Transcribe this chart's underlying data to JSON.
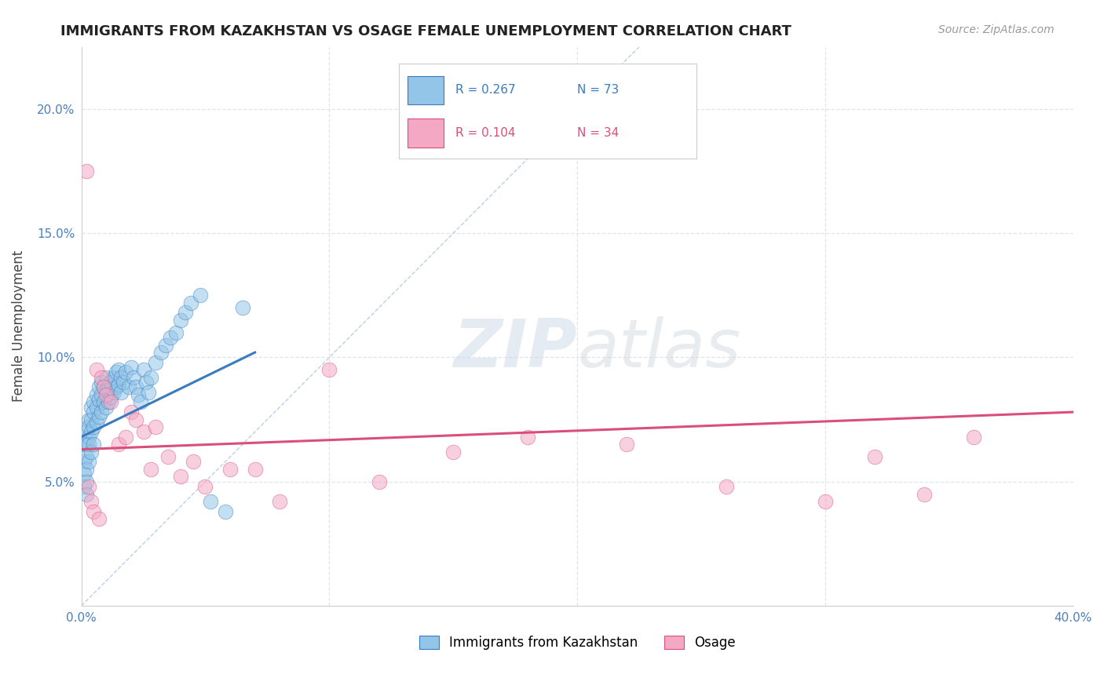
{
  "title": "IMMIGRANTS FROM KAZAKHSTAN VS OSAGE FEMALE UNEMPLOYMENT CORRELATION CHART",
  "source_text": "Source: ZipAtlas.com",
  "ylabel": "Female Unemployment",
  "xlim": [
    0,
    0.4
  ],
  "ylim": [
    0,
    0.225
  ],
  "xticks": [
    0.0,
    0.1,
    0.2,
    0.3,
    0.4
  ],
  "yticks": [
    0.0,
    0.05,
    0.1,
    0.15,
    0.2
  ],
  "xticklabels": [
    "0.0%",
    "",
    "",
    "",
    "40.0%"
  ],
  "yticklabels": [
    "",
    "5.0%",
    "10.0%",
    "15.0%",
    "20.0%"
  ],
  "legend_r1": "R = 0.267",
  "legend_n1": "N = 73",
  "legend_r2": "R = 0.104",
  "legend_n2": "N = 34",
  "legend_label1": "Immigrants from Kazakhstan",
  "legend_label2": "Osage",
  "color_blue": "#92c5e8",
  "color_pink": "#f4a8c4",
  "line_blue": "#3a7bbf",
  "line_pink": "#d94f7a",
  "diagonal_color": "#c0cfe0",
  "grid_color": "#dde5f0",
  "blue_scatter_x": [
    0.001,
    0.001,
    0.001,
    0.001,
    0.002,
    0.002,
    0.002,
    0.002,
    0.002,
    0.002,
    0.003,
    0.003,
    0.003,
    0.003,
    0.003,
    0.004,
    0.004,
    0.004,
    0.004,
    0.005,
    0.005,
    0.005,
    0.005,
    0.006,
    0.006,
    0.006,
    0.007,
    0.007,
    0.007,
    0.008,
    0.008,
    0.008,
    0.009,
    0.009,
    0.01,
    0.01,
    0.01,
    0.011,
    0.011,
    0.012,
    0.012,
    0.013,
    0.013,
    0.014,
    0.014,
    0.015,
    0.015,
    0.016,
    0.016,
    0.017,
    0.018,
    0.019,
    0.02,
    0.021,
    0.022,
    0.023,
    0.024,
    0.025,
    0.026,
    0.027,
    0.028,
    0.03,
    0.032,
    0.034,
    0.036,
    0.038,
    0.04,
    0.042,
    0.044,
    0.048,
    0.052,
    0.058,
    0.065
  ],
  "blue_scatter_y": [
    0.065,
    0.058,
    0.053,
    0.048,
    0.07,
    0.065,
    0.06,
    0.055,
    0.05,
    0.045,
    0.075,
    0.072,
    0.068,
    0.065,
    0.058,
    0.08,
    0.075,
    0.07,
    0.062,
    0.082,
    0.078,
    0.072,
    0.065,
    0.085,
    0.08,
    0.074,
    0.088,
    0.083,
    0.076,
    0.09,
    0.085,
    0.078,
    0.088,
    0.082,
    0.092,
    0.087,
    0.08,
    0.088,
    0.082,
    0.09,
    0.084,
    0.092,
    0.086,
    0.094,
    0.088,
    0.095,
    0.089,
    0.092,
    0.086,
    0.09,
    0.094,
    0.088,
    0.096,
    0.092,
    0.088,
    0.085,
    0.082,
    0.095,
    0.09,
    0.086,
    0.092,
    0.098,
    0.102,
    0.105,
    0.108,
    0.11,
    0.115,
    0.118,
    0.122,
    0.125,
    0.042,
    0.038,
    0.12
  ],
  "pink_scatter_x": [
    0.002,
    0.003,
    0.004,
    0.005,
    0.006,
    0.007,
    0.008,
    0.009,
    0.01,
    0.012,
    0.015,
    0.018,
    0.02,
    0.022,
    0.025,
    0.028,
    0.03,
    0.035,
    0.04,
    0.045,
    0.05,
    0.06,
    0.07,
    0.08,
    0.1,
    0.12,
    0.15,
    0.18,
    0.22,
    0.26,
    0.3,
    0.32,
    0.34,
    0.36
  ],
  "pink_scatter_y": [
    0.175,
    0.048,
    0.042,
    0.038,
    0.095,
    0.035,
    0.092,
    0.088,
    0.085,
    0.082,
    0.065,
    0.068,
    0.078,
    0.075,
    0.07,
    0.055,
    0.072,
    0.06,
    0.052,
    0.058,
    0.048,
    0.055,
    0.055,
    0.042,
    0.095,
    0.05,
    0.062,
    0.068,
    0.065,
    0.048,
    0.042,
    0.06,
    0.045,
    0.068
  ],
  "blue_trend_x": [
    0.0,
    0.07
  ],
  "blue_trend_y": [
    0.068,
    0.102
  ],
  "pink_trend_x": [
    0.0,
    0.4
  ],
  "pink_trend_y": [
    0.063,
    0.078
  ]
}
